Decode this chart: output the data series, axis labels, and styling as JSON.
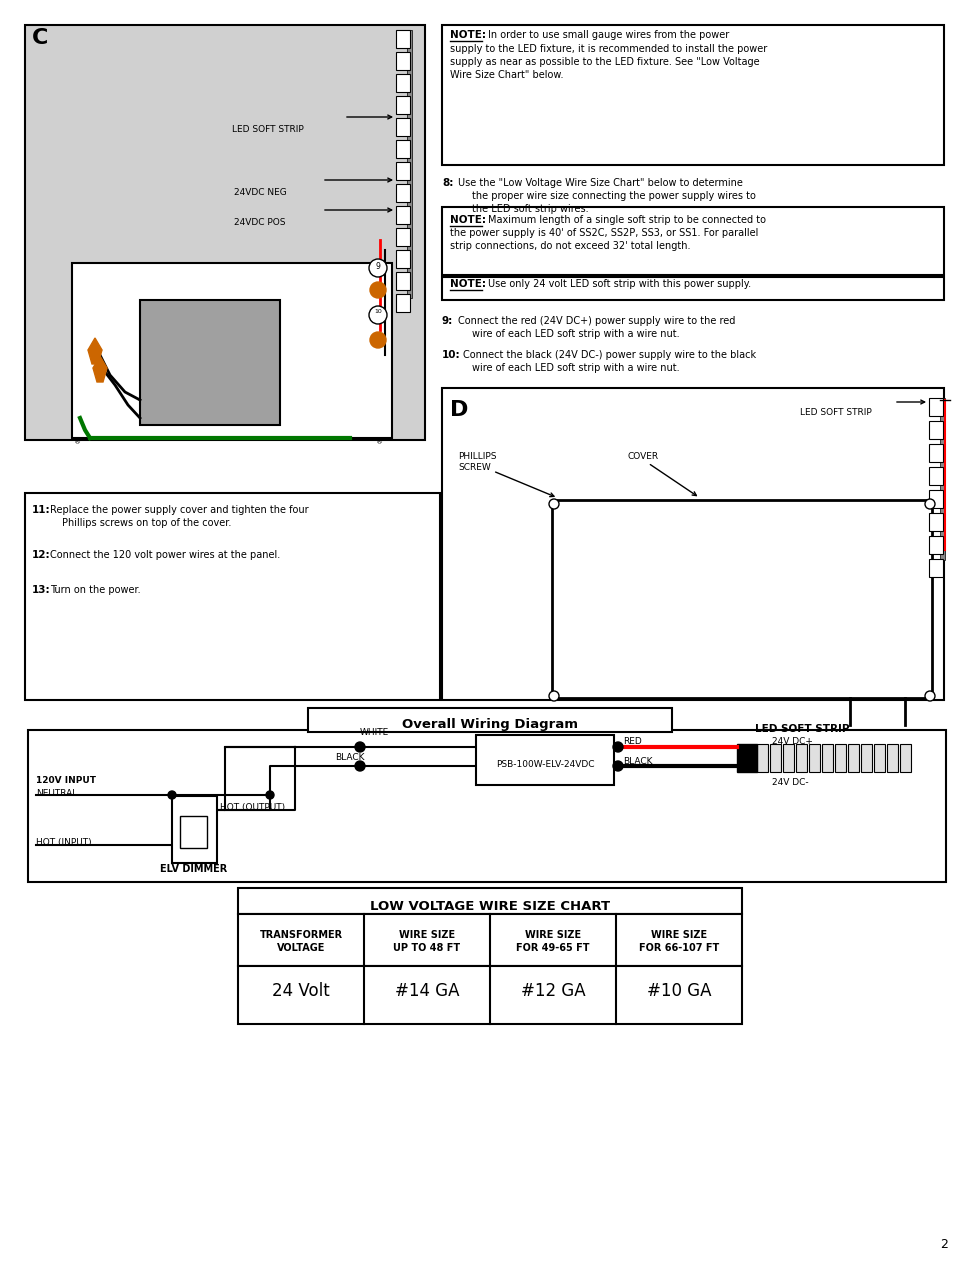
{
  "page_bg": "#ffffff",
  "title_overall": "Overall Wiring Diagram",
  "title_chart": "LOW VOLTAGE WIRE SIZE CHART",
  "table_headers": [
    "TRANSFORMER\nVOLTAGE",
    "WIRE SIZE\nUP TO 48 FT",
    "WIRE SIZE\nFOR 49-65 FT",
    "WIRE SIZE\nFOR 66-107 FT"
  ],
  "table_data": [
    [
      "24 Volt",
      "#14 GA",
      "#12 GA",
      "#10 GA"
    ]
  ],
  "page_num": "2",
  "light_gray": "#d0d0d0",
  "mid_gray": "#a0a0a0",
  "dark_gray": "#606060",
  "orange": "#cc6600",
  "green_wire": "#007700"
}
